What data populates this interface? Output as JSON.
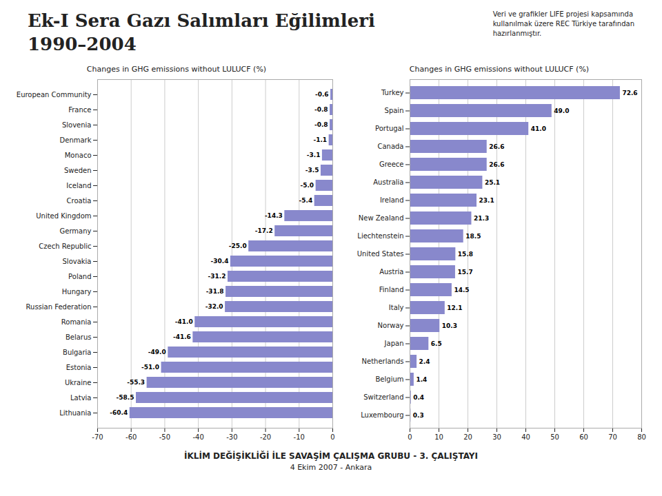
{
  "title": "Ek-I Sera Gazı Salımları Eğilimleri\n1990–2004",
  "subtitle": "Veri ve grafikler LIFE projesi kapsamında\nkullanılmak üzere REC Türkiye tarafından\nhazırlanmıştır.",
  "annotations": [
    "İKLİM DEĞİŞİKLİĞİ İLE SAVAŞİM ÇALIŞMA GRUBU - 3. ÇALIŞTAYI",
    "4 Ekim 2007 - Ankara"
  ],
  "chart_data": [
    {
      "type": "bar",
      "orientation": "horizontal",
      "title": "Changes in GHG emissions without LULUCF (%)",
      "categories": [
        "European Community",
        "France",
        "Slovenia",
        "Denmark",
        "Monaco",
        "Sweden",
        "Iceland",
        "Croatia",
        "United Kingdom",
        "Germany",
        "Czech Republic",
        "Slovakia",
        "Poland",
        "Hungary",
        "Russian Federation",
        "Romania",
        "Belarus",
        "Bulgaria",
        "Estonia",
        "Ukraine",
        "Latvia",
        "Lithuania"
      ],
      "values": [
        -0.6,
        -0.8,
        -0.8,
        -1.1,
        -3.1,
        -3.5,
        -5.0,
        -5.4,
        -14.3,
        -17.2,
        -25.0,
        -30.4,
        -31.2,
        -31.8,
        -32.0,
        -41.0,
        -41.6,
        -49.0,
        -51.0,
        -55.3,
        -58.5,
        -60.4
      ],
      "value_labels": [
        "-0.6",
        "-0.8",
        "-0.8",
        "-1.1",
        "-3.1",
        "-3.5",
        "-5.0",
        "-5.4",
        "-14.3",
        "-17.2",
        "-25.0",
        "-30.4",
        "-31.2",
        "-31.8",
        "-32.0",
        "-41.0",
        "-41.6",
        "-49.0",
        "-51.0",
        "-55.3",
        "-58.5",
        "-60.4"
      ],
      "color": "#8888cc",
      "xlim": [
        -70,
        0
      ],
      "xticks": [
        -70,
        -60,
        -50,
        -40,
        -30,
        -20,
        -10,
        0
      ],
      "grid": true,
      "data_labels": true
    },
    {
      "type": "bar",
      "orientation": "horizontal",
      "title": "Changes in GHG emissions without LULUCF (%)",
      "categories": [
        "Turkey",
        "Spain",
        "Portugal",
        "Canada",
        "Greece",
        "Australia",
        "Ireland",
        "New Zealand",
        "Liechtenstein",
        "United States",
        "Austria",
        "Finland",
        "Italy",
        "Norway",
        "Japan",
        "Netherlands",
        "Belgium",
        "Switzerland",
        "Luxembourg"
      ],
      "values": [
        72.6,
        49.0,
        41.0,
        26.6,
        26.6,
        25.1,
        23.1,
        21.3,
        18.5,
        15.8,
        15.7,
        14.5,
        12.1,
        10.3,
        6.5,
        2.4,
        1.4,
        0.4,
        0.3
      ],
      "value_labels": [
        "72.6",
        "49.0",
        "41.0",
        "26.6",
        "26.6",
        "25.1",
        "23.1",
        "21.3",
        "18.5",
        "15.8",
        "15.7",
        "14.5",
        "12.1",
        "10.3",
        "6.5",
        "2.4",
        "1.4",
        "0.4",
        "0.3"
      ],
      "color": "#8888cc",
      "xlim": [
        0,
        80
      ],
      "xticks": [
        0,
        10,
        20,
        30,
        40,
        50,
        60,
        70,
        80
      ],
      "grid": true,
      "data_labels": true
    }
  ]
}
